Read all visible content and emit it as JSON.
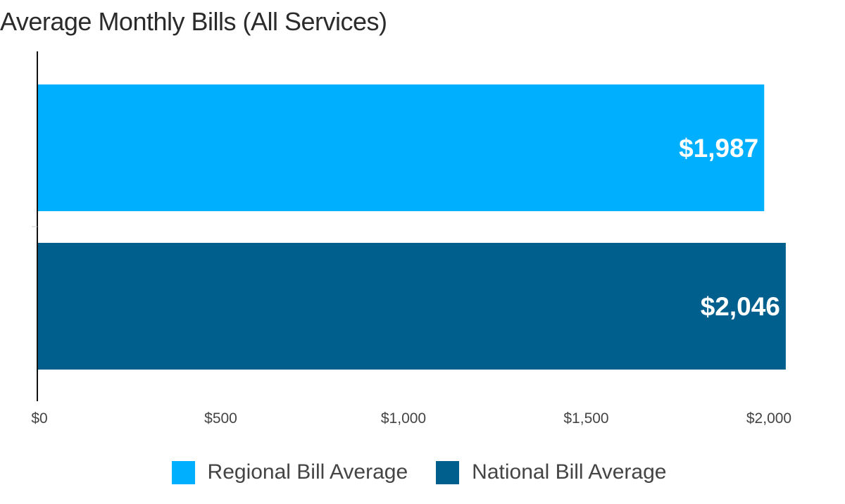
{
  "chart_data": {
    "type": "bar",
    "orientation": "horizontal",
    "title": "Average Monthly Bills (All Services)",
    "xlabel": "",
    "ylabel": "",
    "xlim": [
      0,
      2000
    ],
    "ticks": [
      {
        "value": 0,
        "label": "$0"
      },
      {
        "value": 500,
        "label": "$500"
      },
      {
        "value": 1000,
        "label": "$1,000"
      },
      {
        "value": 1500,
        "label": "$1,500"
      },
      {
        "value": 2000,
        "label": "$2,000"
      }
    ],
    "grid": false,
    "legend_position": "bottom",
    "series": [
      {
        "name": "Regional Bill Average",
        "value": 1987,
        "label": "$1,987",
        "color": "#00b0ff"
      },
      {
        "name": "National Bill Average",
        "value": 2046,
        "label": "$2,046",
        "color": "#005f8c"
      }
    ]
  }
}
